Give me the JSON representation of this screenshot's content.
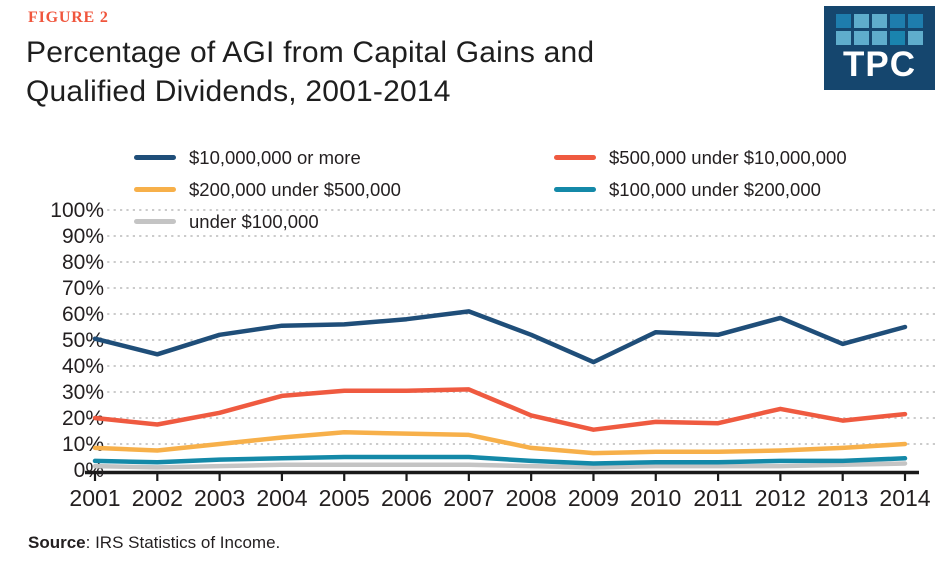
{
  "header": {
    "figure_label": "FIGURE 2",
    "title_line1": "Percentage of AGI from Capital Gains and",
    "title_line2": "Qualified Dividends, 2001-2014"
  },
  "logo": {
    "text": "TPC",
    "background": "#15466e",
    "square_colors": [
      [
        "#1e7dad",
        "#5fadcc",
        "#5fadcc",
        "#1e7dad",
        "#1e7dad"
      ],
      [
        "#5fadcc",
        "#5fadcc",
        "#5fadcc",
        "#1a84ae",
        "#5fadcc"
      ]
    ]
  },
  "colors": {
    "accent": "#f0563d",
    "text": "#231f20",
    "grid": "#cbcbcb",
    "axis": "#1a1a1a"
  },
  "chart_data": {
    "type": "line",
    "title": "Percentage of AGI from Capital Gains and Qualified Dividends, 2001-2014",
    "xlabel": "",
    "ylabel": "",
    "x": [
      2001,
      2002,
      2003,
      2004,
      2005,
      2006,
      2007,
      2008,
      2009,
      2010,
      2011,
      2012,
      2013,
      2014
    ],
    "ylim": [
      0,
      100
    ],
    "ytick_step": 10,
    "ytick_labels": [
      "0%",
      "10%",
      "20%",
      "30%",
      "40%",
      "50%",
      "60%",
      "70%",
      "80%",
      "90%",
      "100%"
    ],
    "grid": "dotted-horizontal",
    "legend_position": "top",
    "unit": "%",
    "series": [
      {
        "name": "$10,000,000 or more",
        "color": "#1f4e79",
        "values": [
          50.5,
          44.5,
          52,
          55.5,
          56,
          58,
          61,
          52,
          41.5,
          53,
          52,
          58.5,
          48.5,
          55
        ]
      },
      {
        "name": "$500,000 under $10,000,000",
        "color": "#ef5a40",
        "values": [
          20,
          17.5,
          22,
          28.5,
          30.5,
          30.5,
          31,
          21,
          15.5,
          18.5,
          18,
          23.5,
          19,
          21.5
        ]
      },
      {
        "name": "$200,000 under $500,000",
        "color": "#f7b04a",
        "values": [
          8.5,
          7.5,
          10,
          12.5,
          14.5,
          14,
          13.5,
          8.5,
          6.5,
          7,
          7,
          7.5,
          8.5,
          10
        ]
      },
      {
        "name": "$100,000 under $200,000",
        "color": "#1489a8",
        "values": [
          3.5,
          3,
          4,
          4.5,
          5,
          5,
          5,
          3.5,
          2.5,
          3,
          3,
          3.5,
          3.5,
          4.5
        ]
      },
      {
        "name": "under $100,000",
        "color": "#c4c4c4",
        "values": [
          1.5,
          1,
          1.5,
          2,
          2,
          2,
          2,
          1.5,
          1,
          1.5,
          1.5,
          1.5,
          2,
          2.5
        ]
      }
    ]
  },
  "source": {
    "label": "Source",
    "text": ": IRS Statistics of Income."
  }
}
